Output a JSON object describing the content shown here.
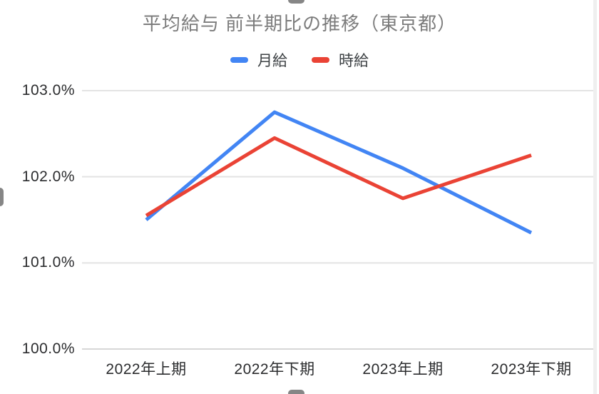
{
  "chart_data": {
    "type": "line",
    "title": "平均給与 前半期比の推移（東京都）",
    "categories": [
      "2022年上期",
      "2022年下期",
      "2023年上期",
      "2023年下期"
    ],
    "series": [
      {
        "name": "月給",
        "color": "#4285F4",
        "values": [
          101.5,
          102.75,
          102.1,
          101.35
        ]
      },
      {
        "name": "時給",
        "color": "#EA4335",
        "values": [
          101.55,
          102.45,
          101.75,
          102.25
        ]
      }
    ],
    "y_ticks": [
      {
        "label": "103.0%",
        "value": 103.0
      },
      {
        "label": "102.0%",
        "value": 102.0
      },
      {
        "label": "101.0%",
        "value": 101.0
      },
      {
        "label": "100.0%",
        "value": 100.0
      }
    ],
    "ylim": [
      100.0,
      103.0
    ],
    "xlabel": "",
    "ylabel": "",
    "grid": true,
    "legend_position": "top"
  },
  "colors": {
    "background": "#ffffff",
    "title_text": "#7c7c7c",
    "axis_text": "#2b2c2e",
    "legend_text": "#3c4043",
    "gridline": "#e3e3e3",
    "baseline": "#d7d7d7",
    "handle": "#868686"
  },
  "ui": {
    "selection_handles": [
      "top-center",
      "bottom-center",
      "left-middle"
    ]
  }
}
